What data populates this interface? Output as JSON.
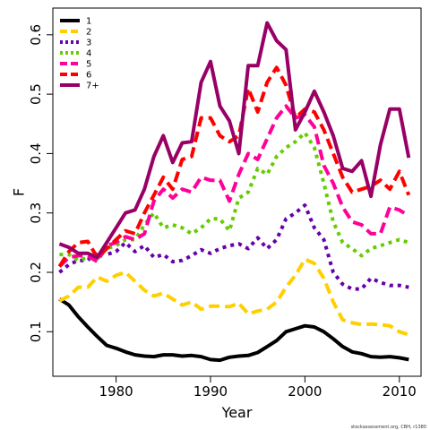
{
  "chart_data": {
    "type": "line",
    "xlabel": "Year",
    "ylabel": "F",
    "xlim": [
      1973.3,
      2012.3
    ],
    "ylim": [
      0.025,
      0.645
    ],
    "xticks": [
      1980,
      1990,
      2000,
      2010
    ],
    "yticks": [
      0.1,
      0.2,
      0.3,
      0.4,
      0.5,
      0.6
    ],
    "grid": false,
    "legend_position": "top-left",
    "credit": "stockassessment.org, CBH, r1380",
    "x": [
      1974,
      1975,
      1976,
      1977,
      1978,
      1979,
      1980,
      1981,
      1982,
      1983,
      1984,
      1985,
      1986,
      1987,
      1988,
      1989,
      1990,
      1991,
      1992,
      1993,
      1994,
      1995,
      1996,
      1997,
      1998,
      1999,
      2000,
      2001,
      2002,
      2003,
      2004,
      2005,
      2006,
      2007,
      2008,
      2009,
      2010,
      2011
    ],
    "series": [
      {
        "name": "1",
        "color": "#000000",
        "dash": "solid",
        "values": [
          0.155,
          0.145,
          0.125,
          0.108,
          0.092,
          0.077,
          0.072,
          0.066,
          0.061,
          0.059,
          0.058,
          0.061,
          0.061,
          0.059,
          0.06,
          0.058,
          0.053,
          0.052,
          0.057,
          0.059,
          0.06,
          0.065,
          0.075,
          0.085,
          0.1,
          0.105,
          0.11,
          0.108,
          0.1,
          0.088,
          0.075,
          0.066,
          0.063,
          0.058,
          0.057,
          0.058,
          0.056,
          0.053
        ]
      },
      {
        "name": "2",
        "color": "#FFD000",
        "dash": "dashed",
        "values": [
          0.152,
          0.16,
          0.175,
          0.175,
          0.192,
          0.185,
          0.195,
          0.2,
          0.185,
          0.17,
          0.16,
          0.165,
          0.155,
          0.145,
          0.15,
          0.138,
          0.143,
          0.143,
          0.142,
          0.148,
          0.13,
          0.135,
          0.138,
          0.15,
          0.175,
          0.195,
          0.222,
          0.215,
          0.19,
          0.15,
          0.12,
          0.115,
          0.112,
          0.113,
          0.112,
          0.11,
          0.1,
          0.095
        ]
      },
      {
        "name": "3",
        "color": "#6600AA",
        "dash": "dotted",
        "values": [
          0.2,
          0.213,
          0.22,
          0.22,
          0.235,
          0.23,
          0.235,
          0.25,
          0.235,
          0.245,
          0.225,
          0.23,
          0.218,
          0.22,
          0.228,
          0.238,
          0.232,
          0.24,
          0.245,
          0.248,
          0.24,
          0.258,
          0.24,
          0.255,
          0.29,
          0.3,
          0.313,
          0.275,
          0.255,
          0.2,
          0.18,
          0.172,
          0.172,
          0.19,
          0.183,
          0.178,
          0.178,
          0.175
        ]
      },
      {
        "name": "4",
        "color": "#66CC00",
        "dash": "dotted",
        "values": [
          0.23,
          0.23,
          0.22,
          0.225,
          0.222,
          0.24,
          0.245,
          0.255,
          0.255,
          0.28,
          0.3,
          0.275,
          0.28,
          0.275,
          0.265,
          0.275,
          0.29,
          0.29,
          0.27,
          0.325,
          0.335,
          0.375,
          0.365,
          0.395,
          0.41,
          0.42,
          0.435,
          0.41,
          0.35,
          0.285,
          0.25,
          0.24,
          0.228,
          0.24,
          0.245,
          0.25,
          0.255,
          0.25
        ]
      },
      {
        "name": "5",
        "color": "#FF0099",
        "dash": "dashed",
        "values": [
          0.21,
          0.225,
          0.228,
          0.228,
          0.218,
          0.245,
          0.25,
          0.26,
          0.255,
          0.265,
          0.32,
          0.34,
          0.325,
          0.34,
          0.335,
          0.36,
          0.355,
          0.355,
          0.32,
          0.365,
          0.4,
          0.39,
          0.425,
          0.46,
          0.48,
          0.46,
          0.465,
          0.445,
          0.38,
          0.35,
          0.31,
          0.285,
          0.28,
          0.265,
          0.265,
          0.31,
          0.305,
          0.295
        ]
      },
      {
        "name": "6",
        "color": "#FF0000",
        "dash": "dashed",
        "values": [
          0.21,
          0.235,
          0.25,
          0.252,
          0.225,
          0.24,
          0.255,
          0.27,
          0.265,
          0.3,
          0.33,
          0.36,
          0.34,
          0.39,
          0.395,
          0.46,
          0.46,
          0.43,
          0.42,
          0.43,
          0.51,
          0.47,
          0.52,
          0.545,
          0.515,
          0.46,
          0.475,
          0.47,
          0.44,
          0.4,
          0.36,
          0.335,
          0.34,
          0.345,
          0.355,
          0.34,
          0.37,
          0.33
        ]
      },
      {
        "name": "7+",
        "color": "#990066",
        "dash": "solid",
        "values": [
          0.248,
          0.242,
          0.232,
          0.232,
          0.225,
          0.25,
          0.275,
          0.3,
          0.305,
          0.34,
          0.395,
          0.43,
          0.385,
          0.418,
          0.42,
          0.52,
          0.555,
          0.48,
          0.455,
          0.4,
          0.548,
          0.548,
          0.62,
          0.59,
          0.575,
          0.44,
          0.47,
          0.505,
          0.47,
          0.43,
          0.375,
          0.37,
          0.388,
          0.328,
          0.415,
          0.475,
          0.475,
          0.393
        ]
      }
    ]
  }
}
